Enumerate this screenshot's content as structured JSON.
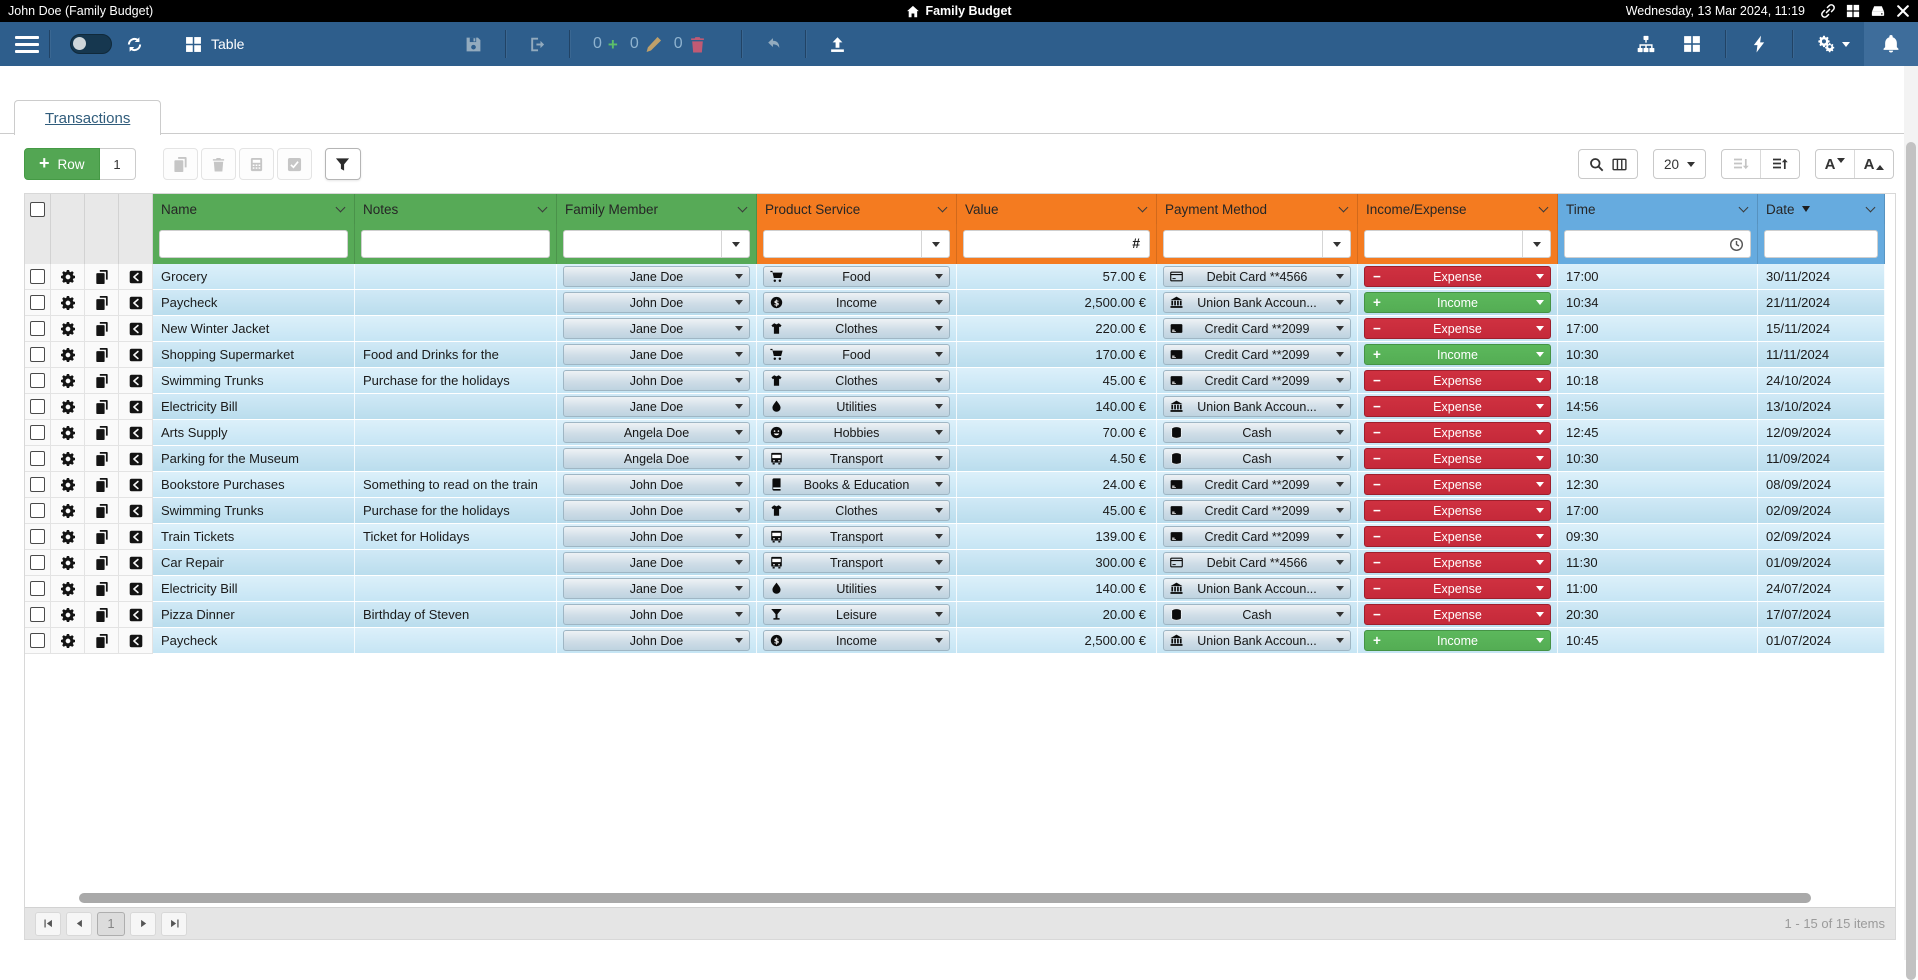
{
  "titlebar": {
    "window_title": "John Doe (Family Budget)",
    "app_title": "Family Budget",
    "datetime": "Wednesday, 13 Mar 2024, 11:19"
  },
  "toolbar": {
    "view_label": "Table",
    "added_count": "0",
    "edited_count": "0",
    "deleted_count": "0"
  },
  "tabs": {
    "transactions": "Transactions"
  },
  "actions": {
    "add_row": "Row",
    "add_row_count": "1",
    "page_size": "20"
  },
  "icons": {
    "add_plus": "+",
    "counter_plus": "+",
    "number_sign": "#",
    "font_letter": "A"
  },
  "grid": {
    "columns": [
      {
        "key": "name",
        "label": "Name",
        "group": "green",
        "filter": "text"
      },
      {
        "key": "notes",
        "label": "Notes",
        "group": "green",
        "filter": "text"
      },
      {
        "key": "family",
        "label": "Family Member",
        "group": "green",
        "filter": "select"
      },
      {
        "key": "product",
        "label": "Product Service",
        "group": "orange",
        "filter": "select"
      },
      {
        "key": "value",
        "label": "Value",
        "group": "orange",
        "filter": "number"
      },
      {
        "key": "payment",
        "label": "Payment Method",
        "group": "orange",
        "filter": "select"
      },
      {
        "key": "flow",
        "label": "Income/Expense",
        "group": "orange",
        "filter": "select"
      },
      {
        "key": "time",
        "label": "Time",
        "group": "blue",
        "filter": "time"
      },
      {
        "key": "date",
        "label": "Date",
        "group": "blue",
        "filter": "text",
        "sort": "desc"
      }
    ],
    "rows": [
      {
        "name": "Grocery",
        "notes": "",
        "family": "Jane Doe",
        "product": {
          "icon": "cart",
          "label": "Food"
        },
        "value": "57.00 €",
        "payment": {
          "icon": "debitcard",
          "label": "Debit Card **4566"
        },
        "flow": {
          "sign": "−",
          "label": "Expense",
          "type": "expense"
        },
        "time": "17:00",
        "date": "30/11/2024"
      },
      {
        "name": "Paycheck",
        "notes": "",
        "family": "John Doe",
        "product": {
          "icon": "coin",
          "label": "Income"
        },
        "value": "2,500.00 €",
        "payment": {
          "icon": "bank",
          "label": "Union Bank Accoun..."
        },
        "flow": {
          "sign": "+",
          "label": "Income",
          "type": "income"
        },
        "time": "10:34",
        "date": "21/11/2024"
      },
      {
        "name": "New Winter Jacket",
        "notes": "",
        "family": "Jane Doe",
        "product": {
          "icon": "tshirt",
          "label": "Clothes"
        },
        "value": "220.00 €",
        "payment": {
          "icon": "creditcard",
          "label": "Credit Card **2099"
        },
        "flow": {
          "sign": "−",
          "label": "Expense",
          "type": "expense"
        },
        "time": "17:00",
        "date": "15/11/2024"
      },
      {
        "name": "Shopping Supermarket",
        "notes": "Food and Drinks for the",
        "family": "Jane Doe",
        "product": {
          "icon": "cart",
          "label": "Food"
        },
        "value": "170.00 €",
        "payment": {
          "icon": "creditcard",
          "label": "Credit Card **2099"
        },
        "flow": {
          "sign": "+",
          "label": "Income",
          "type": "income"
        },
        "time": "10:30",
        "date": "11/11/2024"
      },
      {
        "name": "Swimming Trunks",
        "notes": "Purchase for the holidays",
        "family": "John Doe",
        "product": {
          "icon": "tshirt",
          "label": "Clothes"
        },
        "value": "45.00 €",
        "payment": {
          "icon": "creditcard",
          "label": "Credit Card **2099"
        },
        "flow": {
          "sign": "−",
          "label": "Expense",
          "type": "expense"
        },
        "time": "10:18",
        "date": "24/10/2024"
      },
      {
        "name": "Electricity Bill",
        "notes": "",
        "family": "Jane Doe",
        "product": {
          "icon": "drop",
          "label": "Utilities"
        },
        "value": "140.00 €",
        "payment": {
          "icon": "bank",
          "label": "Union Bank Accoun..."
        },
        "flow": {
          "sign": "−",
          "label": "Expense",
          "type": "expense"
        },
        "time": "14:56",
        "date": "13/10/2024"
      },
      {
        "name": "Arts Supply",
        "notes": "",
        "family": "Angela Doe",
        "product": {
          "icon": "smiley",
          "label": "Hobbies"
        },
        "value": "70.00 €",
        "payment": {
          "icon": "cash",
          "label": "Cash"
        },
        "flow": {
          "sign": "−",
          "label": "Expense",
          "type": "expense"
        },
        "time": "12:45",
        "date": "12/09/2024"
      },
      {
        "name": "Parking for the Museum",
        "notes": "",
        "family": "Angela Doe",
        "product": {
          "icon": "bus",
          "label": "Transport"
        },
        "value": "4.50 €",
        "payment": {
          "icon": "cash",
          "label": "Cash"
        },
        "flow": {
          "sign": "−",
          "label": "Expense",
          "type": "expense"
        },
        "time": "10:30",
        "date": "11/09/2024"
      },
      {
        "name": "Bookstore Purchases",
        "notes": "Something to read on the train",
        "family": "John Doe",
        "product": {
          "icon": "book",
          "label": "Books & Education"
        },
        "value": "24.00 €",
        "payment": {
          "icon": "creditcard",
          "label": "Credit Card **2099"
        },
        "flow": {
          "sign": "−",
          "label": "Expense",
          "type": "expense"
        },
        "time": "12:30",
        "date": "08/09/2024"
      },
      {
        "name": "Swimming Trunks",
        "notes": "Purchase for the holidays",
        "family": "John Doe",
        "product": {
          "icon": "tshirt",
          "label": "Clothes"
        },
        "value": "45.00 €",
        "payment": {
          "icon": "creditcard",
          "label": "Credit Card **2099"
        },
        "flow": {
          "sign": "−",
          "label": "Expense",
          "type": "expense"
        },
        "time": "17:00",
        "date": "02/09/2024"
      },
      {
        "name": "Train Tickets",
        "notes": "Ticket for Holidays",
        "family": "John Doe",
        "product": {
          "icon": "bus",
          "label": "Transport"
        },
        "value": "139.00 €",
        "payment": {
          "icon": "creditcard",
          "label": "Credit Card **2099"
        },
        "flow": {
          "sign": "−",
          "label": "Expense",
          "type": "expense"
        },
        "time": "09:30",
        "date": "02/09/2024"
      },
      {
        "name": "Car Repair",
        "notes": "",
        "family": "Jane Doe",
        "product": {
          "icon": "bus",
          "label": "Transport"
        },
        "value": "300.00 €",
        "payment": {
          "icon": "debitcard",
          "label": "Debit Card **4566"
        },
        "flow": {
          "sign": "−",
          "label": "Expense",
          "type": "expense"
        },
        "time": "11:30",
        "date": "01/09/2024"
      },
      {
        "name": "Electricity Bill",
        "notes": "",
        "family": "Jane Doe",
        "product": {
          "icon": "drop",
          "label": "Utilities"
        },
        "value": "140.00 €",
        "payment": {
          "icon": "bank",
          "label": "Union Bank Accoun..."
        },
        "flow": {
          "sign": "−",
          "label": "Expense",
          "type": "expense"
        },
        "time": "11:00",
        "date": "24/07/2024"
      },
      {
        "name": "Pizza Dinner",
        "notes": "Birthday of Steven",
        "family": "John Doe",
        "product": {
          "icon": "cocktail",
          "label": "Leisure"
        },
        "value": "20.00 €",
        "payment": {
          "icon": "cash",
          "label": "Cash"
        },
        "flow": {
          "sign": "−",
          "label": "Expense",
          "type": "expense"
        },
        "time": "20:30",
        "date": "17/07/2024"
      },
      {
        "name": "Paycheck",
        "notes": "",
        "family": "John Doe",
        "product": {
          "icon": "coin",
          "label": "Income"
        },
        "value": "2,500.00 €",
        "payment": {
          "icon": "bank",
          "label": "Union Bank Accoun..."
        },
        "flow": {
          "sign": "+",
          "label": "Income",
          "type": "income"
        },
        "time": "10:45",
        "date": "01/07/2024"
      }
    ]
  },
  "pager": {
    "page": "1",
    "info": "1 - 15 of 15 items"
  },
  "colors": {
    "toolbar_blue": "#2e5e8c",
    "header_green": "#57aa57",
    "header_orange": "#f47b20",
    "header_blue": "#66abdf",
    "expense_red": "#c5293a",
    "income_green": "#54ad54"
  }
}
